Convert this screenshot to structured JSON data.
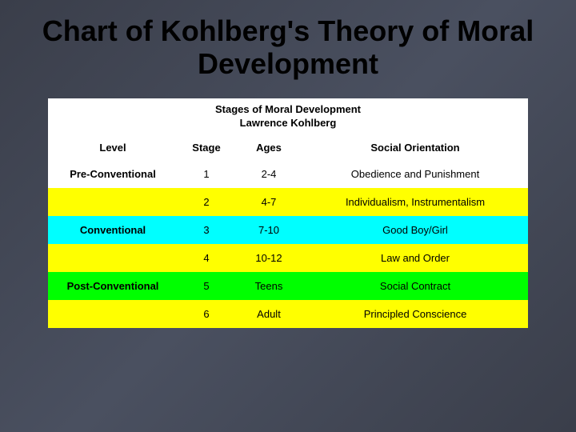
{
  "slide": {
    "title": "Chart of Kohlberg's Theory of Moral Development"
  },
  "table": {
    "subtitle_line1": "Stages of Moral Development",
    "subtitle_line2": "Lawrence Kohlberg",
    "headers": {
      "level": "Level",
      "stage": "Stage",
      "ages": "Ages",
      "orientation": "Social Orientation"
    },
    "rows": [
      {
        "level": "Pre-Conventional",
        "stage": "1",
        "ages": "2-4",
        "orientation": "Obedience and Punishment",
        "bg": "#ffffff"
      },
      {
        "level": "",
        "stage": "2",
        "ages": "4-7",
        "orientation": "Individualism, Instrumentalism",
        "bg": "#ffff00"
      },
      {
        "level": "Conventional",
        "stage": "3",
        "ages": "7-10",
        "orientation": "Good Boy/Girl",
        "bg": "#00ffff"
      },
      {
        "level": "",
        "stage": "4",
        "ages": "10-12",
        "orientation": "Law and Order",
        "bg": "#ffff00"
      },
      {
        "level": "Post-Conventional",
        "stage": "5",
        "ages": "Teens",
        "orientation": "Social Contract",
        "bg": "#00ff00"
      },
      {
        "level": "",
        "stage": "6",
        "ages": "Adult",
        "orientation": "Principled Conscience",
        "bg": "#ffff00"
      }
    ],
    "row_colors": {
      "white": "#ffffff",
      "yellow": "#ffff00",
      "cyan": "#00ffff",
      "green": "#00ff00"
    },
    "header_bg": "#ffffff",
    "border_color": "#000000",
    "font_size_title": 36,
    "font_size_subtitle": 13,
    "font_size_cells": 13
  },
  "background": {
    "gradient_from": "#3a3e4a",
    "gradient_mid": "#4a5060",
    "gradient_to": "#3a3e4a"
  }
}
